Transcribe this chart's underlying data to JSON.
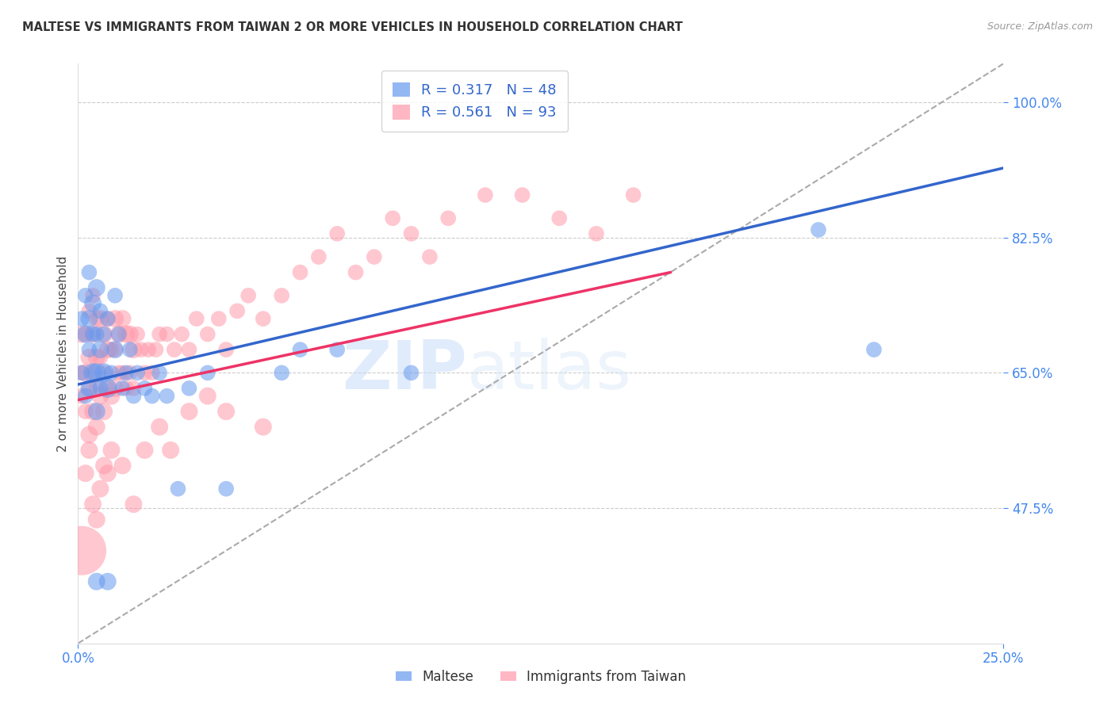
{
  "title": "MALTESE VS IMMIGRANTS FROM TAIWAN 2 OR MORE VEHICLES IN HOUSEHOLD CORRELATION CHART",
  "source_text": "Source: ZipAtlas.com",
  "ylabel": "2 or more Vehicles in Household",
  "xmin": 0.0,
  "xmax": 0.25,
  "ymin": 0.3,
  "ymax": 1.05,
  "yticks": [
    0.475,
    0.65,
    0.825,
    1.0
  ],
  "ytick_labels": [
    "47.5%",
    "65.0%",
    "82.5%",
    "100.0%"
  ],
  "xtick_labels_edge": [
    "0.0%",
    "25.0%"
  ],
  "xticks_edge": [
    0.0,
    0.25
  ],
  "legend_maltese_r": "R = 0.317",
  "legend_maltese_n": "N = 48",
  "legend_taiwan_r": "R = 0.561",
  "legend_taiwan_n": "N = 93",
  "legend_label_maltese": "Maltese",
  "legend_label_taiwan": "Immigrants from Taiwan",
  "watermark_zip": "ZIP",
  "watermark_atlas": "atlas",
  "blue_color": "#6699ee",
  "pink_color": "#ff99aa",
  "blue_line_color": "#3366cc",
  "pink_line_color": "#ee3366",
  "title_color": "#333333",
  "axis_label_color": "#444444",
  "tick_color": "#4488ee",
  "grid_color": "#cccccc",
  "blue_line_x0": 0.0,
  "blue_line_y0": 0.635,
  "blue_line_x1": 0.25,
  "blue_line_y1": 0.915,
  "pink_line_x0": 0.0,
  "pink_line_y0": 0.615,
  "pink_line_x1": 0.16,
  "pink_line_y1": 0.78,
  "dash_line_x0": 0.0,
  "dash_line_y0": 0.3,
  "dash_line_x1": 0.25,
  "dash_line_y1": 1.05,
  "maltese_x": [
    0.001,
    0.001,
    0.002,
    0.002,
    0.002,
    0.003,
    0.003,
    0.003,
    0.003,
    0.004,
    0.004,
    0.004,
    0.005,
    0.005,
    0.005,
    0.005,
    0.006,
    0.006,
    0.006,
    0.007,
    0.007,
    0.008,
    0.008,
    0.009,
    0.01,
    0.01,
    0.011,
    0.012,
    0.013,
    0.014,
    0.015,
    0.016,
    0.018,
    0.02,
    0.022,
    0.024,
    0.027,
    0.03,
    0.035,
    0.04,
    0.055,
    0.06,
    0.07,
    0.09,
    0.2,
    0.215,
    0.005,
    0.008
  ],
  "maltese_y": [
    0.65,
    0.72,
    0.62,
    0.7,
    0.75,
    0.63,
    0.68,
    0.72,
    0.78,
    0.65,
    0.7,
    0.74,
    0.6,
    0.65,
    0.7,
    0.76,
    0.63,
    0.68,
    0.73,
    0.65,
    0.7,
    0.63,
    0.72,
    0.65,
    0.68,
    0.75,
    0.7,
    0.63,
    0.65,
    0.68,
    0.62,
    0.65,
    0.63,
    0.62,
    0.65,
    0.62,
    0.5,
    0.63,
    0.65,
    0.5,
    0.65,
    0.68,
    0.68,
    0.65,
    0.835,
    0.68,
    0.38,
    0.38
  ],
  "maltese_size": [
    20,
    20,
    20,
    25,
    20,
    25,
    20,
    25,
    20,
    30,
    20,
    25,
    25,
    30,
    20,
    25,
    20,
    25,
    20,
    30,
    20,
    30,
    20,
    20,
    25,
    20,
    20,
    20,
    20,
    20,
    20,
    20,
    20,
    20,
    20,
    20,
    20,
    20,
    20,
    20,
    20,
    20,
    20,
    20,
    20,
    20,
    25,
    25
  ],
  "taiwan_x": [
    0.001,
    0.001,
    0.001,
    0.002,
    0.002,
    0.002,
    0.003,
    0.003,
    0.003,
    0.003,
    0.004,
    0.004,
    0.004,
    0.004,
    0.005,
    0.005,
    0.005,
    0.005,
    0.006,
    0.006,
    0.006,
    0.007,
    0.007,
    0.007,
    0.008,
    0.008,
    0.008,
    0.009,
    0.009,
    0.01,
    0.01,
    0.01,
    0.011,
    0.011,
    0.012,
    0.012,
    0.013,
    0.013,
    0.014,
    0.014,
    0.015,
    0.015,
    0.016,
    0.017,
    0.018,
    0.019,
    0.02,
    0.021,
    0.022,
    0.024,
    0.026,
    0.028,
    0.03,
    0.032,
    0.035,
    0.038,
    0.04,
    0.043,
    0.046,
    0.05,
    0.055,
    0.06,
    0.065,
    0.07,
    0.075,
    0.08,
    0.085,
    0.09,
    0.095,
    0.1,
    0.11,
    0.12,
    0.13,
    0.14,
    0.15,
    0.001,
    0.002,
    0.003,
    0.004,
    0.005,
    0.006,
    0.007,
    0.008,
    0.009,
    0.012,
    0.015,
    0.018,
    0.022,
    0.025,
    0.03,
    0.035,
    0.04,
    0.05
  ],
  "taiwan_y": [
    0.62,
    0.65,
    0.7,
    0.6,
    0.65,
    0.7,
    0.57,
    0.63,
    0.67,
    0.73,
    0.6,
    0.65,
    0.7,
    0.75,
    0.58,
    0.63,
    0.67,
    0.72,
    0.62,
    0.67,
    0.72,
    0.6,
    0.65,
    0.7,
    0.63,
    0.68,
    0.72,
    0.62,
    0.68,
    0.63,
    0.68,
    0.72,
    0.65,
    0.7,
    0.65,
    0.72,
    0.63,
    0.7,
    0.65,
    0.7,
    0.63,
    0.68,
    0.7,
    0.68,
    0.65,
    0.68,
    0.65,
    0.68,
    0.7,
    0.7,
    0.68,
    0.7,
    0.68,
    0.72,
    0.7,
    0.72,
    0.68,
    0.73,
    0.75,
    0.72,
    0.75,
    0.78,
    0.8,
    0.83,
    0.78,
    0.8,
    0.85,
    0.83,
    0.8,
    0.85,
    0.88,
    0.88,
    0.85,
    0.83,
    0.88,
    0.42,
    0.52,
    0.55,
    0.48,
    0.46,
    0.5,
    0.53,
    0.52,
    0.55,
    0.53,
    0.48,
    0.55,
    0.58,
    0.55,
    0.6,
    0.62,
    0.6,
    0.58
  ],
  "taiwan_size": [
    20,
    20,
    25,
    20,
    25,
    20,
    25,
    20,
    25,
    20,
    25,
    20,
    25,
    20,
    25,
    20,
    25,
    20,
    25,
    20,
    25,
    25,
    20,
    25,
    20,
    25,
    20,
    25,
    20,
    25,
    20,
    25,
    20,
    25,
    20,
    25,
    20,
    25,
    20,
    25,
    20,
    25,
    20,
    20,
    20,
    20,
    20,
    20,
    20,
    20,
    20,
    20,
    20,
    20,
    20,
    20,
    20,
    20,
    20,
    20,
    20,
    20,
    20,
    20,
    20,
    20,
    20,
    20,
    20,
    20,
    20,
    20,
    20,
    20,
    20,
    200,
    25,
    25,
    25,
    25,
    25,
    25,
    25,
    25,
    25,
    25,
    25,
    25,
    25,
    25,
    25,
    25,
    25
  ]
}
